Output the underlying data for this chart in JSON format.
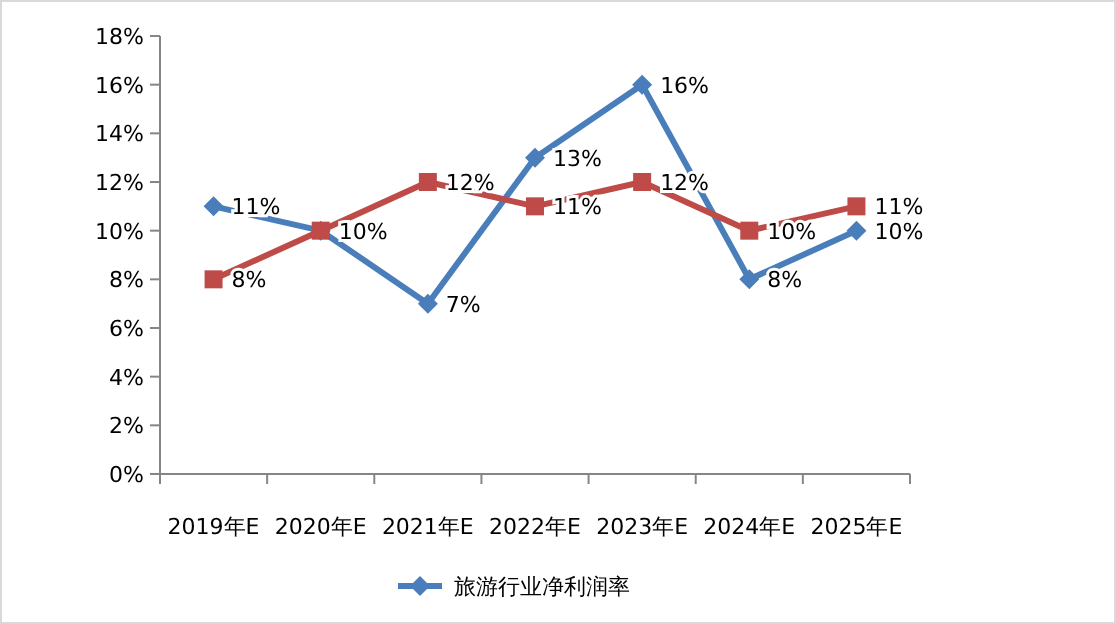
{
  "chart_data": {
    "type": "line",
    "categories": [
      "2019年E",
      "2020年E",
      "2021年E",
      "2022年E",
      "2023年E",
      "2024年E",
      "2025年E"
    ],
    "series": [
      {
        "name": "旅游行业净利润率",
        "color": "#4a7ebb",
        "marker": "diamond",
        "values": [
          11,
          10,
          7,
          13,
          16,
          8,
          10
        ],
        "value_labels": [
          "11%",
          null,
          "7%",
          "13%",
          "16%",
          "8%",
          "10%"
        ]
      },
      {
        "color": "#be4b48",
        "marker": "square",
        "values": [
          8,
          10,
          12,
          11,
          12,
          10,
          11
        ],
        "value_labels": [
          "8%",
          "10%",
          "12%",
          "11%",
          "12%",
          "10%",
          "11%"
        ]
      }
    ],
    "ylim": [
      0,
      18
    ],
    "yticks": [
      {
        "value": 0,
        "label": "0%"
      },
      {
        "value": 2,
        "label": "2%"
      },
      {
        "value": 4,
        "label": "4%"
      },
      {
        "value": 6,
        "label": "6%"
      },
      {
        "value": 8,
        "label": "8%"
      },
      {
        "value": 10,
        "label": "10%"
      },
      {
        "value": 12,
        "label": "12%"
      },
      {
        "value": 14,
        "label": "14%"
      },
      {
        "value": 16,
        "label": "16%"
      },
      {
        "value": 18,
        "label": "18%"
      }
    ],
    "grid": false,
    "legend": "bottom",
    "line_style": "solid"
  }
}
